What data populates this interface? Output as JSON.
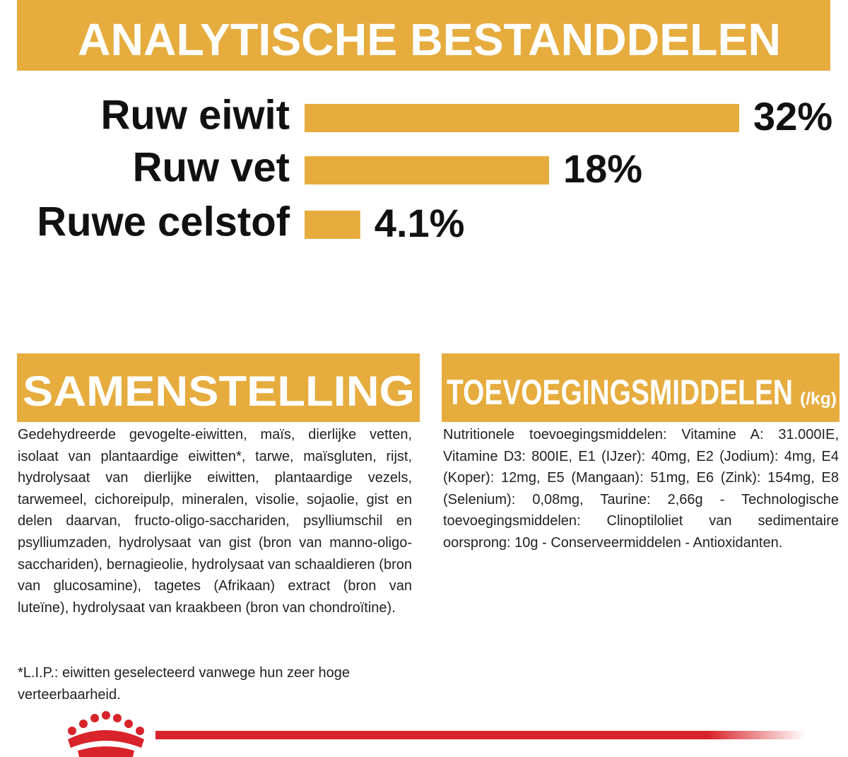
{
  "chart_data": {
    "type": "bar",
    "title": "ANALYTISCHE BESTANDDELEN",
    "categories": [
      "Ruw eiwit",
      "Ruw vet",
      "Ruwe celstof"
    ],
    "values": [
      32,
      18,
      4.1
    ],
    "value_labels": [
      "32%",
      "18%",
      "4.1%"
    ],
    "color": "#e6ac3e",
    "orientation": "horizontal"
  },
  "composition": {
    "title": "SAMENSTELLING",
    "text": "Gedehydreerde gevogelte-eiwitten, maïs, dierlijke vetten, isolaat van plantaardige eiwitten*, tarwe, maïsgluten, rijst, hydrolysaat van dierlijke eiwitten, plantaardige vezels, tarwemeel, cichoreipulp, mineralen, visolie, sojaolie, gist en delen daarvan, fructo-oligo-sacchariden, psylliumschil en psylliumzaden, hydrolysaat van gist (bron van manno-oligo-sacchariden), bernagieolie, hydrolysaat van schaaldieren (bron van glucosamine), tagetes (Afrikaan) extract (bron van luteïne), hydrolysaat van kraakbeen (bron van chondroïtine).",
    "note": "*L.I.P.: eiwitten geselecteerd vanwege hun zeer hoge verteerbaarheid."
  },
  "additives": {
    "title": "TOEVOEGINGSMIDDELEN",
    "unit": "(/kg)",
    "text": "Nutritionele toevoegingsmiddelen: Vitamine A: 31.000IE, Vitamine D3: 800IE, E1 (IJzer): 40mg, E2 (Jodium): 4mg, E4 (Koper): 12mg, E5 (Mangaan): 51mg, E6 (Zink): 154mg, E8 (Selenium): 0,08mg, Taurine: 2,66g - Technologische toevoegingsmiddelen: Clinoptiloliet van sedimentaire oorsprong: 10g - Conserveermiddelen - Antioxidanten."
  }
}
